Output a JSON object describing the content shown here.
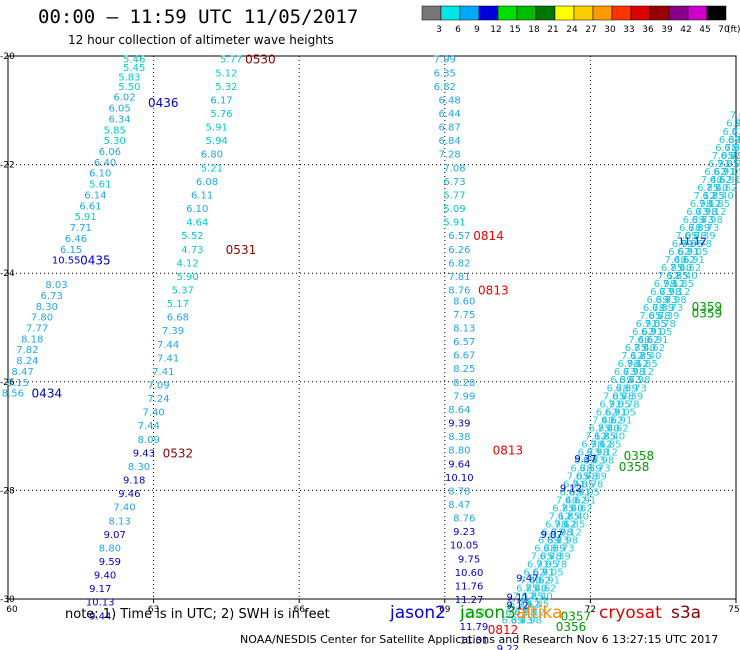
{
  "header": {
    "title": "00:00 – 11:59 UTC 11/05/2017",
    "subtitle": "12 hour collection of altimeter wave heights"
  },
  "legend": {
    "unit": "(ft)",
    "bins": [
      {
        "label": "3",
        "color": "#777777"
      },
      {
        "label": "6",
        "color": "#00e6e6"
      },
      {
        "label": "9",
        "color": "#00aaff"
      },
      {
        "label": "12",
        "color": "#0000dd"
      },
      {
        "label": "15",
        "color": "#00dd00"
      },
      {
        "label": "18",
        "color": "#00bb00"
      },
      {
        "label": "21",
        "color": "#007700"
      },
      {
        "label": "24",
        "color": "#ffff00"
      },
      {
        "label": "27",
        "color": "#ffcc00"
      },
      {
        "label": "30",
        "color": "#ff9900"
      },
      {
        "label": "33",
        "color": "#ff3300"
      },
      {
        "label": "36",
        "color": "#dd0000"
      },
      {
        "label": "39",
        "color": "#990000"
      },
      {
        "label": "42",
        "color": "#880088"
      },
      {
        "label": "45",
        "color": "#cc00cc"
      },
      {
        "label": "70",
        "color": "#000000"
      }
    ]
  },
  "axes": {
    "lon_ticks": [
      "60",
      "63",
      "66",
      "69",
      "72",
      "75"
    ],
    "lat_ticks": [
      "-20",
      "-22",
      "-24",
      "-26",
      "-28",
      "-30"
    ],
    "lon_range": [
      60,
      75
    ],
    "lat_range": [
      -30,
      -20
    ]
  },
  "colors": {
    "cyan": "#00cccc",
    "lightblue": "#1fa8e8",
    "blue": "#0000cc",
    "green": "#009900",
    "lightgreen": "#55dd55",
    "red": "#ee0000",
    "darkred": "#880000",
    "brightcyan": "#11bbee"
  },
  "tracks": [
    {
      "id": "a",
      "labels": [
        {
          "v": "5.46",
          "lon": 62.6,
          "lat": -20.05,
          "c": "cyan"
        },
        {
          "v": "5.45",
          "lon": 62.6,
          "lat": -20.2,
          "c": "cyan"
        },
        {
          "v": "5.83",
          "lon": 62.5,
          "lat": -20.38,
          "c": "cyan"
        },
        {
          "v": "5.50",
          "lon": 62.5,
          "lat": -20.55,
          "c": "cyan"
        },
        {
          "v": "6.02",
          "lon": 62.4,
          "lat": -20.75,
          "c": "lightblue"
        },
        {
          "v": "6.05",
          "lon": 62.3,
          "lat": -20.95,
          "c": "lightblue"
        },
        {
          "v": "6.34",
          "lon": 62.3,
          "lat": -21.15,
          "c": "lightblue"
        },
        {
          "v": "5.85",
          "lon": 62.2,
          "lat": -21.35,
          "c": "cyan"
        },
        {
          "v": "5.30",
          "lon": 62.2,
          "lat": -21.55,
          "c": "cyan"
        },
        {
          "v": "6.06",
          "lon": 62.1,
          "lat": -21.75,
          "c": "lightblue"
        },
        {
          "v": "6.40",
          "lon": 62.0,
          "lat": -21.95,
          "c": "lightblue"
        },
        {
          "v": "6.10",
          "lon": 61.9,
          "lat": -22.15,
          "c": "lightblue"
        },
        {
          "v": "5.61",
          "lon": 61.9,
          "lat": -22.35,
          "c": "cyan"
        },
        {
          "v": "6.14",
          "lon": 61.8,
          "lat": -22.55,
          "c": "lightblue"
        },
        {
          "v": "6.61",
          "lon": 61.7,
          "lat": -22.75,
          "c": "lightblue"
        },
        {
          "v": "5.91",
          "lon": 61.6,
          "lat": -22.95,
          "c": "cyan"
        },
        {
          "v": "7.71",
          "lon": 61.5,
          "lat": -23.15,
          "c": "lightblue"
        },
        {
          "v": "6.46",
          "lon": 61.4,
          "lat": -23.35,
          "c": "lightblue"
        },
        {
          "v": "6.15",
          "lon": 61.3,
          "lat": -23.55,
          "c": "lightblue"
        },
        {
          "v": "10.55",
          "lon": 61.2,
          "lat": -23.75,
          "c": "blue"
        },
        {
          "v": "8.03",
          "lon": 61.0,
          "lat": -24.2,
          "c": "lightblue"
        },
        {
          "v": "6.73",
          "lon": 60.9,
          "lat": -24.4,
          "c": "lightblue"
        },
        {
          "v": "8.30",
          "lon": 60.8,
          "lat": -24.6,
          "c": "lightblue"
        },
        {
          "v": "7.80",
          "lon": 60.7,
          "lat": -24.8,
          "c": "lightblue"
        },
        {
          "v": "7.77",
          "lon": 60.6,
          "lat": -25.0,
          "c": "lightblue"
        },
        {
          "v": "8.18",
          "lon": 60.5,
          "lat": -25.2,
          "c": "lightblue"
        },
        {
          "v": "7.82",
          "lon": 60.4,
          "lat": -25.4,
          "c": "lightblue"
        },
        {
          "v": "8.24",
          "lon": 60.4,
          "lat": -25.6,
          "c": "lightblue"
        },
        {
          "v": "8.47",
          "lon": 60.3,
          "lat": -25.8,
          "c": "lightblue"
        },
        {
          "v": "8.15",
          "lon": 60.2,
          "lat": -26.0,
          "c": "lightblue"
        },
        {
          "v": "8.56",
          "lon": 60.1,
          "lat": -26.2,
          "c": "lightblue"
        }
      ]
    },
    {
      "id": "b",
      "labels": [
        {
          "v": "5.77",
          "lon": 64.6,
          "lat": -20.05,
          "c": "cyan"
        },
        {
          "v": "5.12",
          "lon": 64.5,
          "lat": -20.3,
          "c": "cyan"
        },
        {
          "v": "5.32",
          "lon": 64.5,
          "lat": -20.55,
          "c": "cyan"
        },
        {
          "v": "6.17",
          "lon": 64.4,
          "lat": -20.8,
          "c": "lightblue"
        },
        {
          "v": "5.76",
          "lon": 64.4,
          "lat": -21.05,
          "c": "cyan"
        },
        {
          "v": "5.91",
          "lon": 64.3,
          "lat": -21.3,
          "c": "cyan"
        },
        {
          "v": "5.94",
          "lon": 64.3,
          "lat": -21.55,
          "c": "cyan"
        },
        {
          "v": "6.80",
          "lon": 64.2,
          "lat": -21.8,
          "c": "lightblue"
        },
        {
          "v": "5.21",
          "lon": 64.2,
          "lat": -22.05,
          "c": "cyan"
        },
        {
          "v": "6.08",
          "lon": 64.1,
          "lat": -22.3,
          "c": "lightblue"
        },
        {
          "v": "6.11",
          "lon": 64.0,
          "lat": -22.55,
          "c": "lightblue"
        },
        {
          "v": "6.10",
          "lon": 63.9,
          "lat": -22.8,
          "c": "lightblue"
        },
        {
          "v": "4.64",
          "lon": 63.9,
          "lat": -23.05,
          "c": "cyan"
        },
        {
          "v": "5.52",
          "lon": 63.8,
          "lat": -23.3,
          "c": "cyan"
        },
        {
          "v": "4.73",
          "lon": 63.8,
          "lat": -23.55,
          "c": "cyan"
        },
        {
          "v": "4.12",
          "lon": 63.7,
          "lat": -23.8,
          "c": "cyan"
        },
        {
          "v": "5.90",
          "lon": 63.7,
          "lat": -24.05,
          "c": "cyan"
        },
        {
          "v": "5.37",
          "lon": 63.6,
          "lat": -24.3,
          "c": "cyan"
        },
        {
          "v": "5.17",
          "lon": 63.5,
          "lat": -24.55,
          "c": "cyan"
        },
        {
          "v": "6.68",
          "lon": 63.5,
          "lat": -24.8,
          "c": "lightblue"
        },
        {
          "v": "7.39",
          "lon": 63.4,
          "lat": -25.05,
          "c": "lightblue"
        },
        {
          "v": "7.44",
          "lon": 63.3,
          "lat": -25.3,
          "c": "lightblue"
        },
        {
          "v": "7.41",
          "lon": 63.3,
          "lat": -25.55,
          "c": "lightblue"
        },
        {
          "v": "7.41",
          "lon": 63.2,
          "lat": -25.8,
          "c": "lightblue"
        },
        {
          "v": "7.09",
          "lon": 63.1,
          "lat": -26.05,
          "c": "lightblue"
        },
        {
          "v": "7.24",
          "lon": 63.1,
          "lat": -26.3,
          "c": "lightblue"
        },
        {
          "v": "7.40",
          "lon": 63.0,
          "lat": -26.55,
          "c": "lightblue"
        },
        {
          "v": "7.44",
          "lon": 62.9,
          "lat": -26.8,
          "c": "lightblue"
        },
        {
          "v": "8.09",
          "lon": 62.9,
          "lat": -27.05,
          "c": "lightblue"
        },
        {
          "v": "9.43",
          "lon": 62.8,
          "lat": -27.3,
          "c": "blue"
        },
        {
          "v": "8.30",
          "lon": 62.7,
          "lat": -27.55,
          "c": "lightblue"
        },
        {
          "v": "9.18",
          "lon": 62.6,
          "lat": -27.8,
          "c": "blue"
        },
        {
          "v": "9.46",
          "lon": 62.5,
          "lat": -28.05,
          "c": "blue"
        },
        {
          "v": "7.40",
          "lon": 62.4,
          "lat": -28.3,
          "c": "lightblue"
        },
        {
          "v": "8.13",
          "lon": 62.3,
          "lat": -28.55,
          "c": "lightblue"
        },
        {
          "v": "9.07",
          "lon": 62.2,
          "lat": -28.8,
          "c": "blue"
        },
        {
          "v": "8.80",
          "lon": 62.1,
          "lat": -29.05,
          "c": "lightblue"
        },
        {
          "v": "9.59",
          "lon": 62.1,
          "lat": -29.3,
          "c": "blue"
        },
        {
          "v": "9.40",
          "lon": 62.0,
          "lat": -29.55,
          "c": "blue"
        },
        {
          "v": "9.17",
          "lon": 61.9,
          "lat": -29.8,
          "c": "blue"
        },
        {
          "v": "10.13",
          "lon": 61.9,
          "lat": -30.05,
          "c": "blue"
        },
        {
          "v": "9.44",
          "lon": 61.9,
          "lat": -30.3,
          "c": "blue"
        }
      ]
    },
    {
      "id": "c",
      "labels": [
        {
          "v": "7.99",
          "lon": 69.0,
          "lat": -20.05,
          "c": "lightblue"
        },
        {
          "v": "6.35",
          "lon": 69.0,
          "lat": -20.3,
          "c": "lightblue"
        },
        {
          "v": "6.82",
          "lon": 69.0,
          "lat": -20.55,
          "c": "lightblue"
        },
        {
          "v": "6.48",
          "lon": 69.1,
          "lat": -20.8,
          "c": "lightblue"
        },
        {
          "v": "6.44",
          "lon": 69.1,
          "lat": -21.05,
          "c": "lightblue"
        },
        {
          "v": "6.87",
          "lon": 69.1,
          "lat": -21.3,
          "c": "lightblue"
        },
        {
          "v": "6.84",
          "lon": 69.1,
          "lat": -21.55,
          "c": "lightblue"
        },
        {
          "v": "7.28",
          "lon": 69.1,
          "lat": -21.8,
          "c": "lightblue"
        },
        {
          "v": "7.08",
          "lon": 69.2,
          "lat": -22.05,
          "c": "lightblue"
        },
        {
          "v": "6.73",
          "lon": 69.2,
          "lat": -22.3,
          "c": "lightblue"
        },
        {
          "v": "5.77",
          "lon": 69.2,
          "lat": -22.55,
          "c": "cyan"
        },
        {
          "v": "5.09",
          "lon": 69.2,
          "lat": -22.8,
          "c": "cyan"
        },
        {
          "v": "5.91",
          "lon": 69.2,
          "lat": -23.05,
          "c": "cyan"
        },
        {
          "v": "6.57",
          "lon": 69.3,
          "lat": -23.3,
          "c": "lightblue"
        },
        {
          "v": "6.26",
          "lon": 69.3,
          "lat": -23.55,
          "c": "lightblue"
        },
        {
          "v": "6.82",
          "lon": 69.3,
          "lat": -23.8,
          "c": "lightblue"
        },
        {
          "v": "7.81",
          "lon": 69.3,
          "lat": -24.05,
          "c": "lightblue"
        },
        {
          "v": "8.76",
          "lon": 69.3,
          "lat": -24.3,
          "c": "lightblue"
        },
        {
          "v": "8.60",
          "lon": 69.4,
          "lat": -24.5,
          "c": "lightblue"
        },
        {
          "v": "7.75",
          "lon": 69.4,
          "lat": -24.75,
          "c": "lightblue"
        },
        {
          "v": "8.13",
          "lon": 69.4,
          "lat": -25.0,
          "c": "lightblue"
        },
        {
          "v": "6.57",
          "lon": 69.4,
          "lat": -25.25,
          "c": "lightblue"
        },
        {
          "v": "6.67",
          "lon": 69.4,
          "lat": -25.5,
          "c": "lightblue"
        },
        {
          "v": "8.25",
          "lon": 69.4,
          "lat": -25.75,
          "c": "lightblue"
        },
        {
          "v": "8.28",
          "lon": 69.4,
          "lat": -26.0,
          "c": "lightblue"
        },
        {
          "v": "7.99",
          "lon": 69.4,
          "lat": -26.25,
          "c": "lightblue"
        },
        {
          "v": "8.64",
          "lon": 69.3,
          "lat": -26.5,
          "c": "lightblue"
        },
        {
          "v": "9.39",
          "lon": 69.3,
          "lat": -26.75,
          "c": "blue"
        },
        {
          "v": "8.38",
          "lon": 69.3,
          "lat": -27.0,
          "c": "lightblue"
        },
        {
          "v": "8.80",
          "lon": 69.3,
          "lat": -27.25,
          "c": "lightblue"
        },
        {
          "v": "9.64",
          "lon": 69.3,
          "lat": -27.5,
          "c": "blue"
        },
        {
          "v": "10.10",
          "lon": 69.3,
          "lat": -27.75,
          "c": "blue"
        },
        {
          "v": "8.78",
          "lon": 69.3,
          "lat": -28.0,
          "c": "lightblue"
        },
        {
          "v": "8.47",
          "lon": 69.3,
          "lat": -28.25,
          "c": "lightblue"
        },
        {
          "v": "8.76",
          "lon": 69.4,
          "lat": -28.5,
          "c": "lightblue"
        },
        {
          "v": "9.23",
          "lon": 69.4,
          "lat": -28.75,
          "c": "blue"
        },
        {
          "v": "10.05",
          "lon": 69.4,
          "lat": -29.0,
          "c": "blue"
        },
        {
          "v": "9.75",
          "lon": 69.5,
          "lat": -29.25,
          "c": "blue"
        },
        {
          "v": "10.60",
          "lon": 69.5,
          "lat": -29.5,
          "c": "blue"
        },
        {
          "v": "11.76",
          "lon": 69.5,
          "lat": -29.75,
          "c": "blue"
        },
        {
          "v": "11.27",
          "lon": 69.5,
          "lat": -30.0,
          "c": "blue"
        },
        {
          "v": "12.08",
          "lon": 69.6,
          "lat": -30.25,
          "c": "lightgreen"
        },
        {
          "v": "11.79",
          "lon": 69.6,
          "lat": -30.5,
          "c": "blue"
        },
        {
          "v": "11.31",
          "lon": 69.6,
          "lat": -30.75,
          "c": "blue"
        }
      ]
    },
    {
      "id": "d",
      "labels": [
        {
          "v": "11.12",
          "lon": 74.1,
          "lat": -23.4,
          "c": "blue"
        },
        {
          "v": "9.37",
          "lon": 71.9,
          "lat": -27.4,
          "c": "blue"
        },
        {
          "v": "9.12",
          "lon": 71.6,
          "lat": -27.95,
          "c": "blue"
        },
        {
          "v": "9.07",
          "lon": 71.2,
          "lat": -28.8,
          "c": "blue"
        },
        {
          "v": "9.47",
          "lon": 70.7,
          "lat": -29.6,
          "c": "blue"
        },
        {
          "v": "9.11",
          "lon": 70.5,
          "lat": -29.95,
          "c": "blue"
        },
        {
          "v": "9.12",
          "lon": 70.5,
          "lat": -30.1,
          "c": "blue"
        },
        {
          "v": "9.22",
          "lon": 70.3,
          "lat": -30.9,
          "c": "blue"
        }
      ]
    }
  ],
  "pass_labels": [
    {
      "v": "0530",
      "lon": 65.2,
      "lat": -20.05,
      "c": "darkred"
    },
    {
      "v": "0436",
      "lon": 63.2,
      "lat": -20.85,
      "c": "blue"
    },
    {
      "v": "0531",
      "lon": 64.8,
      "lat": -23.55,
      "c": "darkred"
    },
    {
      "v": "0435",
      "lon": 61.8,
      "lat": -23.75,
      "c": "blue"
    },
    {
      "v": "0434",
      "lon": 60.8,
      "lat": -26.2,
      "c": "blue"
    },
    {
      "v": "0532",
      "lon": 63.5,
      "lat": -27.3,
      "c": "darkred"
    },
    {
      "v": "0814",
      "lon": 69.9,
      "lat": -23.3,
      "c": "red"
    },
    {
      "v": "0813",
      "lon": 70.0,
      "lat": -24.3,
      "c": "red"
    },
    {
      "v": "0813",
      "lon": 70.3,
      "lat": -27.25,
      "c": "red"
    },
    {
      "v": "0359",
      "lon": 74.4,
      "lat": -24.6,
      "c": "green"
    },
    {
      "v": "0359",
      "lon": 74.4,
      "lat": -24.72,
      "c": "green"
    },
    {
      "v": "0358",
      "lon": 73.0,
      "lat": -27.35,
      "c": "green"
    },
    {
      "v": "0358",
      "lon": 72.9,
      "lat": -27.55,
      "c": "green"
    },
    {
      "v": "0357",
      "lon": 71.7,
      "lat": -30.3,
      "c": "green"
    },
    {
      "v": "0356",
      "lon": 71.6,
      "lat": -30.5,
      "c": "green"
    },
    {
      "v": "0812",
      "lon": 70.2,
      "lat": -30.55,
      "c": "red"
    }
  ],
  "footer": {
    "note": "note:  1) Time is in UTC;  2) SWH is in feet",
    "satellites": [
      {
        "name": "jason2",
        "color": "#0000dd"
      },
      {
        "name": "jason3",
        "color": "#009900"
      },
      {
        "name": "altika",
        "color": "#ff8800"
      },
      {
        "name": "cryosat",
        "color": "#dd0000"
      },
      {
        "name": "s3a",
        "color": "#880000"
      }
    ],
    "credit": "NOAA/NESDIS Center for Satellite Applications and Research    Nov  6 13:27:15 UTC 2017"
  }
}
